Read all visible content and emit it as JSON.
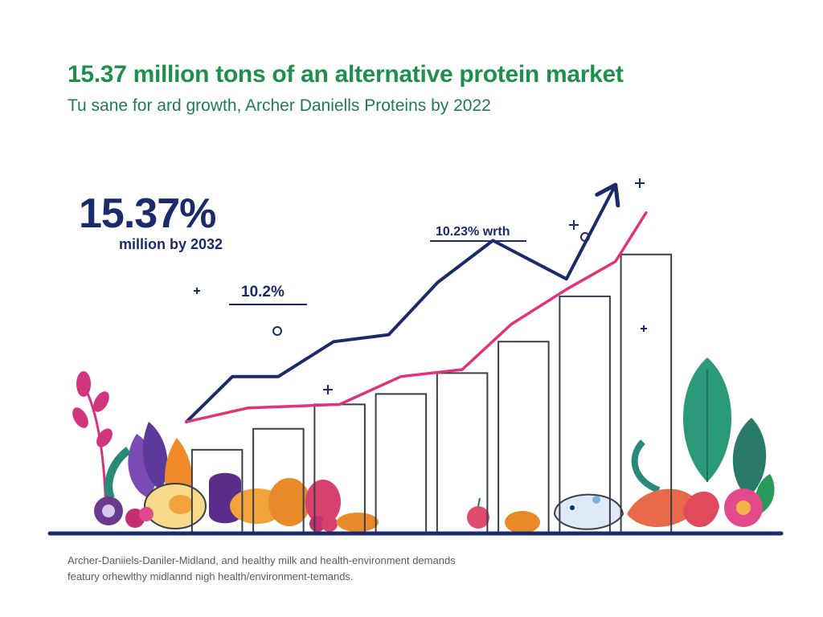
{
  "header": {
    "title": "15.37 million tons of an alternative protein market",
    "subtitle": "Tu sane for ard growth, Archer Daniells Proteins by 2022"
  },
  "callouts": {
    "big_number": "15.37%",
    "big_number_caption": "million by 2032",
    "small_label": "10.2%",
    "growth_label": "10.23% wrth"
  },
  "footnotes": [
    "Archer-Daniiels-Daniler-Midland, and healthy milk and health-environment demands",
    "featury orhewlthy midlannd nigh health/environment-temands."
  ],
  "colors": {
    "title": "#1f8f4e",
    "navy": "#1b2a6b",
    "magenta": "#e0337a",
    "bar_outline": "#3a3f4a",
    "baseline": "#1b2a6b"
  },
  "decor": {
    "sparkle_icon": "sparkle-icon",
    "left_plants": "vegetable-cluster-left",
    "right_plants": "vegetable-cluster-right"
  },
  "chart_data": {
    "type": "bar",
    "title": "",
    "xlabel": "",
    "ylabel": "",
    "ylim": [
      0,
      100
    ],
    "grid": false,
    "legend": "none",
    "categories": [
      "",
      "",
      "",
      "",
      "",
      "",
      "",
      ""
    ],
    "series": [
      {
        "values": [
          24,
          30,
          37,
          40,
          46,
          55,
          68,
          80
        ]
      }
    ],
    "lines": [
      {
        "color": "navy",
        "x": [
          0,
          0.75,
          1.5,
          2.4,
          3.3,
          4.1,
          5.0,
          6.2,
          7.0
        ],
        "y": [
          32,
          45,
          45,
          55,
          57,
          72,
          84,
          73,
          100
        ]
      },
      {
        "color": "magenta",
        "x": [
          0,
          1.0,
          2.5,
          3.5,
          4.5,
          5.3,
          6.2,
          7.0,
          7.5
        ],
        "y": [
          32,
          36,
          37,
          45,
          47,
          60,
          70,
          78,
          92
        ]
      }
    ]
  }
}
